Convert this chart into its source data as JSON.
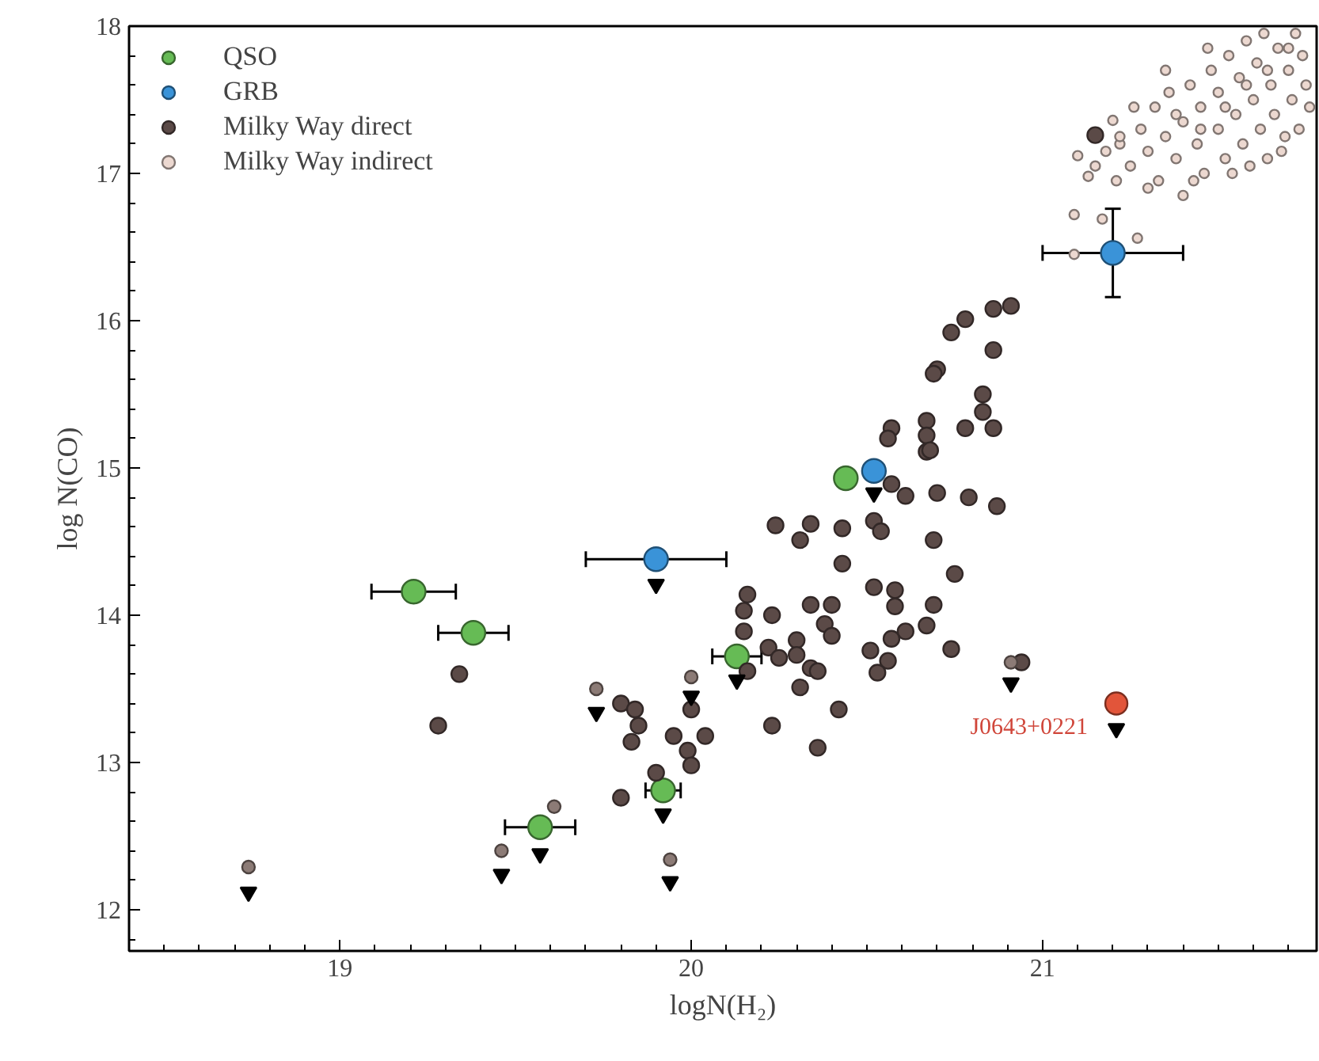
{
  "chart_data": {
    "type": "scatter",
    "xlabel": "logN(H₂)",
    "ylabel": "log N(CO)",
    "xlim": [
      18.4,
      21.78
    ],
    "ylim": [
      11.72,
      18.0
    ],
    "xticks": [
      19,
      20,
      21
    ],
    "yticks": [
      12,
      13,
      14,
      15,
      16,
      17,
      18
    ],
    "grid": false,
    "legend": "top left",
    "marker": "circle",
    "annotations": [
      {
        "text": "J0643+0221",
        "x": 21.21,
        "y": 13.4
      }
    ],
    "series": [
      {
        "name": "QSO",
        "color": "#66bb55",
        "x": [
          19.21,
          19.38,
          19.57,
          19.92,
          20.13,
          20.44
        ],
        "values": [
          14.16,
          13.88,
          12.56,
          12.81,
          13.72,
          14.93
        ],
        "xerrors": [
          0.12,
          0.1,
          0.1,
          0.05,
          0.07,
          null
        ]
      },
      {
        "name": "GRB",
        "color": "#3a93d8",
        "x": [
          19.9,
          20.52,
          21.2
        ],
        "values": [
          14.38,
          14.98,
          16.46
        ],
        "xerrors": [
          0.2,
          null,
          0.2
        ],
        "errors": [
          null,
          null,
          0.3
        ]
      },
      {
        "name": "Milky Way direct",
        "color": "#5b4a47",
        "x": [
          19.34,
          19.28,
          19.8,
          19.84,
          19.85,
          19.83,
          19.8,
          19.9,
          19.95,
          19.99,
          20.0,
          20.04,
          20.0,
          20.24,
          20.34,
          20.31,
          20.43,
          20.43,
          20.52,
          20.54,
          20.69,
          20.75,
          20.87,
          20.79,
          20.7,
          20.61,
          20.57,
          20.16,
          20.15,
          20.23,
          20.15,
          20.34,
          20.4,
          20.38,
          20.4,
          20.52,
          20.58,
          20.58,
          20.69,
          20.67,
          20.61,
          20.57,
          20.51,
          20.56,
          20.53,
          20.74,
          20.22,
          20.25,
          20.3,
          20.3,
          20.34,
          20.36,
          20.31,
          20.16,
          20.42,
          20.23,
          20.36,
          20.94,
          20.67,
          21.15,
          20.78,
          20.74,
          20.86,
          20.91,
          20.86,
          20.7,
          20.69,
          20.83,
          20.83,
          20.86,
          20.78,
          20.67,
          20.67,
          20.68,
          20.57,
          20.56
        ],
        "values": [
          13.6,
          13.25,
          13.4,
          13.36,
          13.25,
          13.14,
          12.76,
          12.93,
          13.18,
          13.08,
          12.98,
          13.18,
          13.36,
          14.61,
          14.62,
          14.51,
          14.59,
          14.35,
          14.64,
          14.57,
          14.51,
          14.28,
          14.74,
          14.8,
          14.83,
          14.81,
          14.89,
          14.14,
          14.03,
          14.0,
          13.89,
          14.07,
          14.07,
          13.94,
          13.86,
          14.19,
          14.17,
          14.06,
          14.07,
          13.93,
          13.89,
          13.84,
          13.76,
          13.69,
          13.61,
          13.77,
          13.78,
          13.71,
          13.83,
          13.73,
          13.64,
          13.62,
          13.51,
          13.62,
          13.36,
          13.25,
          13.1,
          13.68,
          15.11,
          17.26,
          16.01,
          15.92,
          16.08,
          16.1,
          15.8,
          15.67,
          15.64,
          15.5,
          15.38,
          15.27,
          15.27,
          15.32,
          15.22,
          15.12,
          15.27,
          15.2
        ]
      },
      {
        "name": "Milky Way indirect",
        "color": "#ecd8d0",
        "x": [
          21.1,
          21.2,
          21.21,
          21.09,
          21.17,
          21.09,
          21.27,
          21.15,
          21.18,
          21.22,
          21.25,
          21.28,
          21.3,
          21.32,
          21.33,
          21.35,
          21.36,
          21.38,
          21.4,
          21.4,
          21.42,
          21.44,
          21.45,
          21.46,
          21.48,
          21.5,
          21.5,
          21.52,
          21.53,
          21.55,
          21.56,
          21.57,
          21.58,
          21.6,
          21.61,
          21.62,
          21.63,
          21.65,
          21.66,
          21.67,
          21.68,
          21.7,
          21.71,
          21.72,
          21.73,
          21.74,
          21.75,
          21.76,
          21.26,
          21.3,
          21.35,
          21.43,
          21.47,
          21.54,
          21.59,
          21.64,
          21.69,
          21.38,
          21.45,
          21.52,
          21.58,
          21.64,
          21.7,
          21.22,
          21.13
        ],
        "values": [
          17.12,
          17.36,
          16.95,
          16.72,
          16.69,
          16.45,
          16.56,
          17.05,
          17.15,
          17.2,
          17.05,
          17.3,
          17.15,
          17.45,
          16.95,
          17.25,
          17.55,
          17.1,
          17.35,
          16.85,
          17.6,
          17.2,
          17.45,
          17.0,
          17.7,
          17.3,
          17.55,
          17.1,
          17.8,
          17.4,
          17.65,
          17.2,
          17.9,
          17.5,
          17.75,
          17.3,
          17.95,
          17.6,
          17.4,
          17.85,
          17.15,
          17.7,
          17.5,
          17.95,
          17.3,
          17.8,
          17.6,
          17.45,
          17.45,
          16.9,
          17.7,
          16.95,
          17.85,
          17.0,
          17.05,
          17.1,
          17.25,
          17.4,
          17.3,
          17.45,
          17.6,
          17.7,
          17.85,
          17.25,
          16.98
        ]
      },
      {
        "color": "#8c7b76",
        "x": [
          18.74,
          19.46,
          19.61,
          19.73,
          19.94,
          20.0,
          20.91
        ],
        "values": [
          12.29,
          12.4,
          12.7,
          13.5,
          12.34,
          13.58,
          13.68
        ]
      },
      {
        "color": "#e2553a",
        "x": [
          21.21
        ],
        "values": [
          13.4
        ]
      },
      {
        "color": "#000000",
        "marker": "triangle",
        "x": [
          18.74,
          19.46,
          19.57,
          19.73,
          19.92,
          19.94,
          20.0,
          20.13,
          19.9,
          20.52,
          20.91,
          21.21
        ],
        "values": [
          12.12,
          12.24,
          12.38,
          13.34,
          12.65,
          12.19,
          13.45,
          13.56,
          14.21,
          14.83,
          13.54,
          13.23
        ]
      }
    ]
  }
}
